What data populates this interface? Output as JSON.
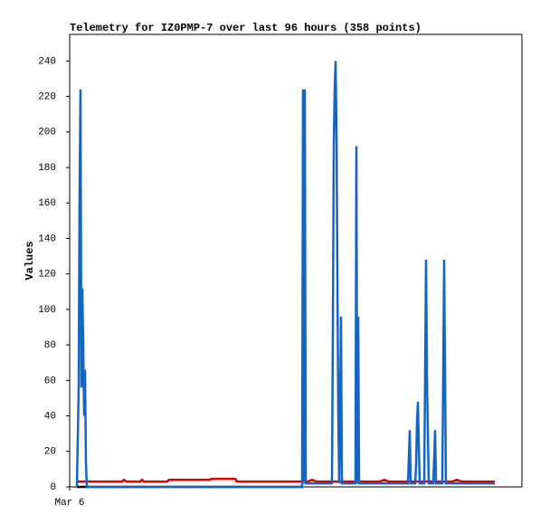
{
  "chart_data": {
    "type": "line",
    "title": "Telemetry for IZ0PMP-7 over last 96 hours (358 points)",
    "y_label": "Values",
    "xlim": [
      0,
      100
    ],
    "xticks": [
      {
        "value": 0,
        "label": "Mar 6"
      }
    ],
    "ylim": [
      0,
      255
    ],
    "yticks": [
      0,
      20,
      40,
      60,
      80,
      100,
      120,
      140,
      160,
      180,
      200,
      220,
      240
    ],
    "grid": false,
    "series": [
      {
        "color": "#000000",
        "x": [
          1.6,
          51.6
        ],
        "values": [
          0,
          0
        ]
      },
      {
        "color": "#e00000",
        "x": [
          1.6,
          11.6,
          12,
          12.6,
          15.6,
          16,
          16.4,
          21.6,
          22,
          31,
          31.4,
          36.6,
          37,
          38.6,
          50.6,
          52.6,
          53.6,
          54.6,
          68.6,
          69.6,
          70.6,
          84.6,
          85.6,
          86.6,
          94
        ],
        "values": [
          3,
          3,
          4,
          3,
          3,
          4,
          3,
          3,
          4,
          4,
          4.5,
          4.5,
          3,
          3,
          3,
          3,
          4,
          3,
          3,
          4,
          3,
          3,
          4,
          3,
          3
        ]
      },
      {
        "color": "#1565c0",
        "x": [
          1.6,
          2,
          2.2,
          2.4,
          2.6,
          2.8,
          3,
          3.2,
          3.4,
          3.6,
          3.8,
          51.4,
          51.6,
          51.8,
          52,
          52.2,
          58,
          58.2,
          58.4,
          58.6,
          58.8,
          59,
          59.2,
          59.4,
          59.6,
          59.8,
          60,
          60.2,
          63.2,
          63.4,
          63.6,
          63.8,
          64,
          74.8,
          75,
          75.2,
          75.4,
          76.4,
          76.6,
          76.8,
          77,
          77.2,
          77.4,
          78.4,
          78.6,
          78.8,
          79,
          79.2,
          79.4,
          80.4,
          80.6,
          80.8,
          81,
          82.4,
          82.6,
          82.8,
          83,
          83.2,
          94
        ],
        "values": [
          0,
          56,
          168,
          224,
          56,
          112,
          80,
          40,
          66,
          14,
          0,
          0,
          224,
          2,
          224,
          2,
          2,
          88,
          192,
          224,
          240,
          200,
          120,
          40,
          2,
          48,
          96,
          2,
          2,
          192,
          2,
          96,
          2,
          2,
          16,
          32,
          2,
          2,
          12,
          36,
          48,
          24,
          2,
          2,
          64,
          128,
          64,
          32,
          2,
          2,
          16,
          32,
          2,
          2,
          64,
          128,
          64,
          2,
          2
        ]
      }
    ]
  }
}
